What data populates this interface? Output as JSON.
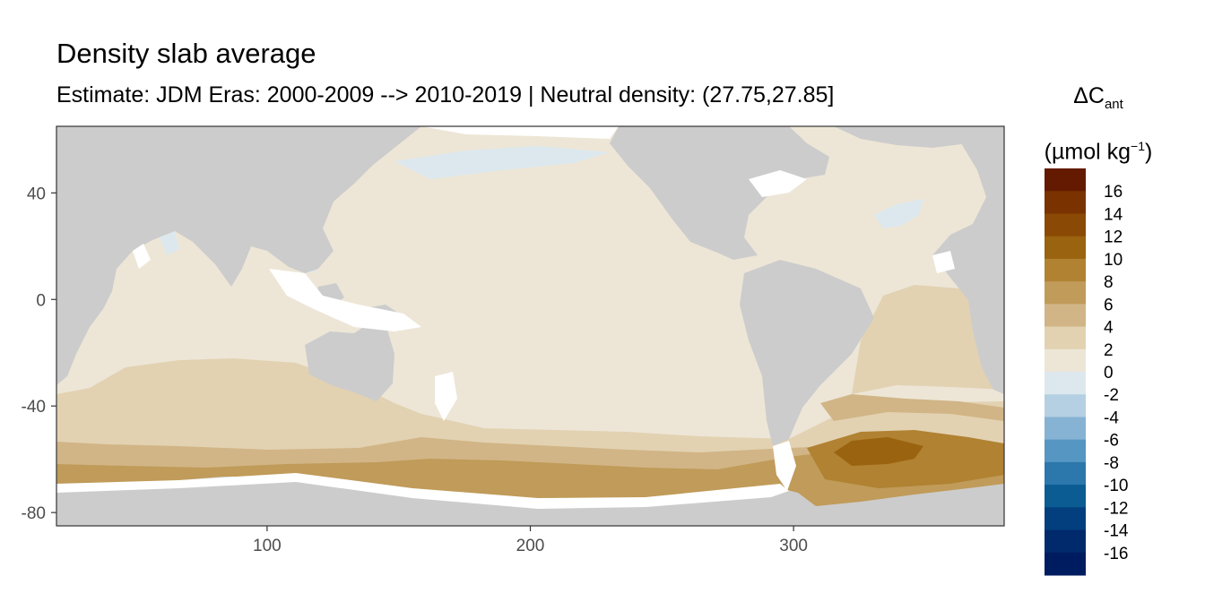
{
  "title": "Density slab average",
  "subtitle": "Estimate: JDM Eras: 2000-2009 --> 2010-2019 | Neutral density: (27.75,27.85]",
  "legend": {
    "symbol": "ΔC",
    "subscript": "ant",
    "unit_open": "(µmol kg",
    "unit_sup": "−1",
    "unit_close": ")"
  },
  "chart_data": {
    "type": "heatmap",
    "x_ticks": [
      100,
      200,
      300
    ],
    "y_ticks": [
      40,
      0,
      -40,
      -80
    ],
    "xlim": [
      20,
      380
    ],
    "ylim": [
      -85,
      65
    ],
    "land_color": "#cccccc",
    "nodata_color": "#ffffff",
    "scale": [
      {
        "color": "#631a00",
        "label": "16"
      },
      {
        "color": "#7a3300",
        "label": "14"
      },
      {
        "color": "#8a4a05",
        "label": "12"
      },
      {
        "color": "#9a630f",
        "label": "10"
      },
      {
        "color": "#b08232",
        "label": "8"
      },
      {
        "color": "#c09b59",
        "label": "6"
      },
      {
        "color": "#d1b586",
        "label": "4"
      },
      {
        "color": "#e2d2b2",
        "label": "2"
      },
      {
        "color": "#ede6d7",
        "label": "0"
      },
      {
        "color": "#dde8ee",
        "label": "-2"
      },
      {
        "color": "#b5d0e3",
        "label": "-4"
      },
      {
        "color": "#86b3d3",
        "label": "-6"
      },
      {
        "color": "#5696c2",
        "label": "-8"
      },
      {
        "color": "#2c77ab",
        "label": "-10"
      },
      {
        "color": "#0b5c92",
        "label": "-12"
      },
      {
        "color": "#033f7e",
        "label": "-14"
      },
      {
        "color": "#012a6d",
        "label": "-16"
      },
      {
        "color": "#001c60",
        "label": ""
      }
    ],
    "regions": [
      {
        "name": "north-pacific-subpolar",
        "value": -1,
        "color": "#dde8ee"
      },
      {
        "name": "pacific-indian-interior",
        "value": 1,
        "color": "#ede6d7"
      },
      {
        "name": "north-atlantic-west",
        "value": -1,
        "color": "#dde8ee"
      },
      {
        "name": "tropical-south-atlantic",
        "value": 3,
        "color": "#e2d2b2"
      },
      {
        "name": "southern-ocean-band-1",
        "value": 3,
        "color": "#e2d2b2"
      },
      {
        "name": "southern-ocean-band-2",
        "value": 5,
        "color": "#d1b586"
      },
      {
        "name": "southern-ocean-band-3",
        "value": 7,
        "color": "#c09b59"
      },
      {
        "name": "south-atlantic-southern",
        "value": 9,
        "color": "#b08232"
      },
      {
        "name": "weddell-core",
        "value": 11,
        "color": "#9a630f"
      }
    ]
  }
}
